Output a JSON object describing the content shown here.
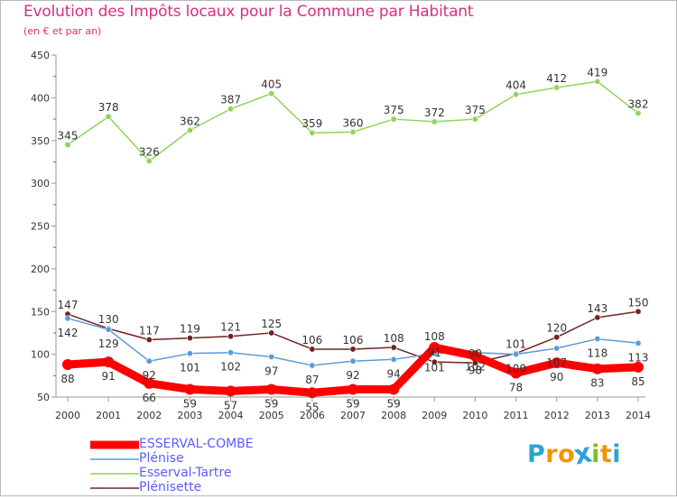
{
  "title": "Evolution des Impôts locaux pour la Commune par Habitant",
  "subtitle": "(en € et par an)",
  "chart_data": {
    "type": "line",
    "x": [
      "2000",
      "2001",
      "2002",
      "2003",
      "2004",
      "2005",
      "2006",
      "2007",
      "2008",
      "2009",
      "2010",
      "2011",
      "2012",
      "2013",
      "2014"
    ],
    "ylim": [
      50,
      450
    ],
    "yticks": [
      50,
      100,
      150,
      200,
      250,
      300,
      350,
      400,
      450
    ],
    "grid": false,
    "legend_position": "bottom-left",
    "series": [
      {
        "name": "ESSERVAL-COMBE",
        "color": "#ff0000",
        "values": [
          88,
          91,
          66,
          59,
          57,
          59,
          55,
          59,
          59,
          108,
          98,
          78,
          90,
          83,
          85
        ],
        "labels": [
          "88",
          "91",
          "66",
          "59",
          "57",
          "59",
          "55",
          "59",
          "59",
          "108",
          "98",
          "78",
          "90",
          "83",
          "85"
        ]
      },
      {
        "name": "Plénise",
        "color": "#5b9bd5",
        "values": [
          142,
          129,
          92,
          101,
          102,
          97,
          87,
          92,
          94,
          101,
          102,
          100,
          107,
          118,
          113
        ],
        "labels": [
          "142",
          "129",
          "92",
          "101",
          "102",
          "97",
          "87",
          "92",
          "94",
          "101",
          "102",
          "100",
          "107",
          "118",
          "113"
        ]
      },
      {
        "name": "Esserval-Tartre",
        "color": "#8fd45c",
        "values": [
          345,
          378,
          326,
          362,
          387,
          405,
          359,
          360,
          375,
          372,
          375,
          404,
          412,
          419,
          382
        ],
        "labels": [
          "345",
          "378",
          "326",
          "362",
          "387",
          "405",
          "359",
          "360",
          "375",
          "372",
          "375",
          "404",
          "412",
          "419",
          "382"
        ]
      },
      {
        "name": "Plénisette",
        "color": "#722222",
        "values": [
          147,
          130,
          117,
          119,
          121,
          125,
          106,
          106,
          108,
          91,
          90,
          101,
          120,
          143,
          150
        ],
        "labels": [
          "147",
          "130",
          "117",
          "119",
          "121",
          "125",
          "106",
          "106",
          "108",
          "91",
          "90",
          "101",
          "120",
          "143",
          "150"
        ]
      }
    ]
  },
  "legend": {
    "items": [
      "ESSERVAL-COMBE",
      "Plénise",
      "Esserval-Tartre",
      "Plénisette"
    ]
  },
  "logo": {
    "letters": [
      "P",
      "r",
      "o",
      "x",
      "i",
      "t",
      "i"
    ],
    "colors": [
      "#2ba3d6",
      "#f29400",
      "#f29400",
      "#2ba3d6",
      "#86bc25",
      "#f29400",
      "#2ba3d6"
    ]
  }
}
